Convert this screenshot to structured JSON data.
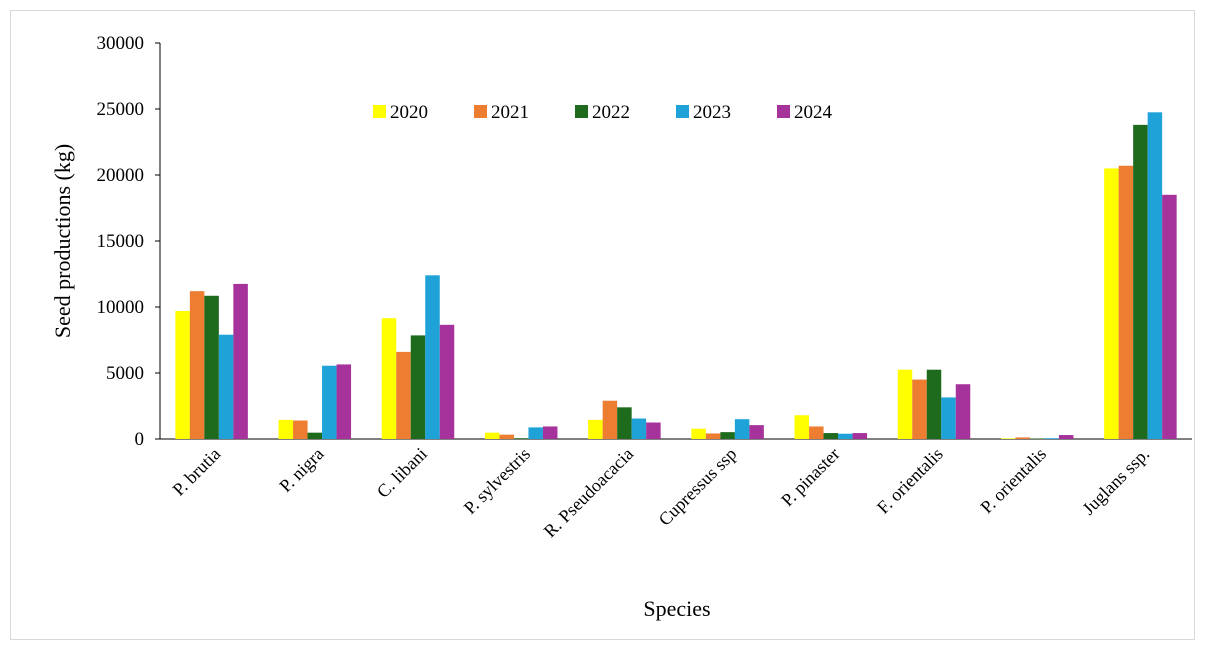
{
  "chart_data": {
    "type": "bar",
    "title": "",
    "xlabel": "Species",
    "ylabel": "Seed productions (kg)",
    "ylim": [
      0,
      30000
    ],
    "yticks": [
      0,
      5000,
      10000,
      15000,
      20000,
      25000,
      30000
    ],
    "grid": false,
    "legend_position": "top-center",
    "categories": [
      "P. brutia",
      "P. nigra",
      "C. libani",
      "P. sylvestris",
      "R. Pseudoacacia",
      "Cupressus ssp",
      "P. pinaster",
      "F. orientalis",
      "P. orientalis",
      "Juglans ssp."
    ],
    "series": [
      {
        "name": "2020",
        "color": "#ffff00",
        "values": [
          9700,
          1450,
          9150,
          480,
          1450,
          780,
          1800,
          5250,
          50,
          20500
        ]
      },
      {
        "name": "2021",
        "color": "#ed7d31",
        "values": [
          11200,
          1400,
          6600,
          330,
          2900,
          420,
          950,
          4500,
          120,
          20700
        ]
      },
      {
        "name": "2022",
        "color": "#1e6b1e",
        "values": [
          10850,
          480,
          7850,
          60,
          2400,
          520,
          450,
          5250,
          40,
          23800
        ]
      },
      {
        "name": "2023",
        "color": "#1ea2d8",
        "values": [
          7900,
          5550,
          12400,
          880,
          1550,
          1500,
          400,
          3150,
          60,
          24750
        ]
      },
      {
        "name": "2024",
        "color": "#a6329c",
        "values": [
          11750,
          5650,
          8650,
          950,
          1250,
          1050,
          450,
          4150,
          300,
          18500
        ]
      }
    ]
  }
}
